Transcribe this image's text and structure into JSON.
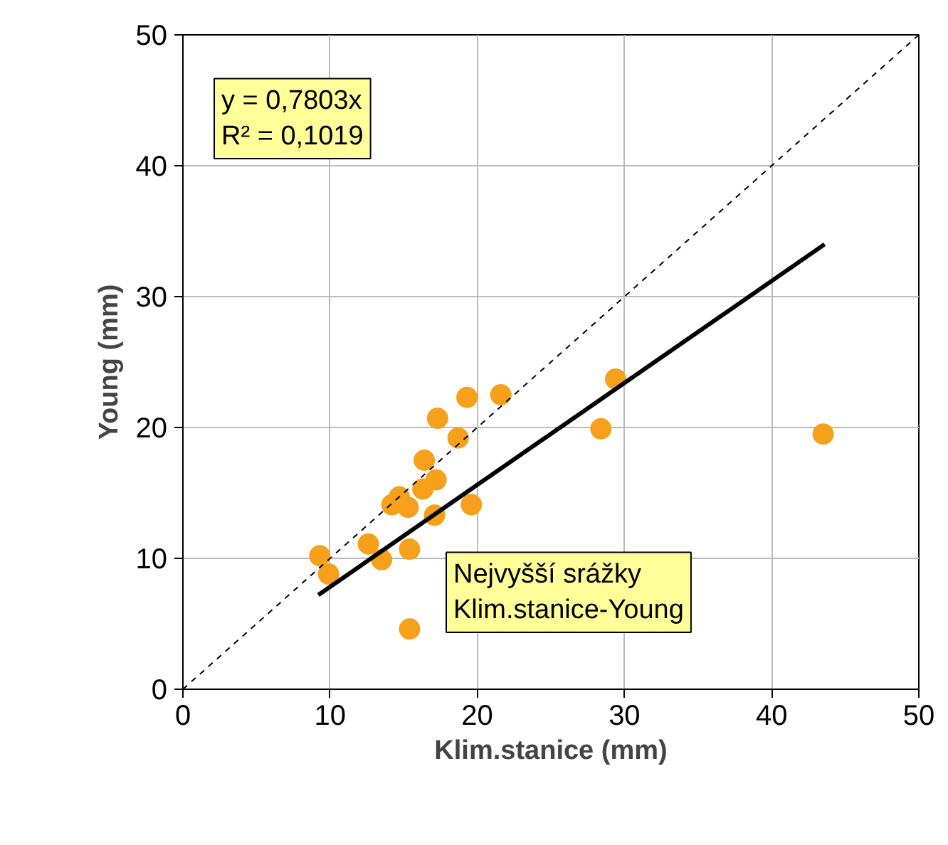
{
  "chart_data": {
    "type": "scatter",
    "xlabel": "Klim.stanice (mm)",
    "ylabel": "Young (mm)",
    "xlim": [
      0,
      50
    ],
    "ylim": [
      0,
      50
    ],
    "xticks": [
      0,
      10,
      20,
      30,
      40,
      50
    ],
    "yticks": [
      0,
      10,
      20,
      30,
      40,
      50
    ],
    "grid": true,
    "marker": "circle",
    "series": [
      {
        "color": "#f7a01c",
        "x": [
          19.3,
          21.6,
          17.3,
          18.7,
          16.4,
          17.2,
          16.3,
          14.7,
          14.2,
          15.3,
          17.1,
          19.6,
          12.6,
          13.5,
          15.4,
          9.3,
          9.9,
          15.4,
          29.4,
          28.4,
          43.5
        ],
        "values": [
          22.3,
          22.5,
          20.7,
          19.2,
          17.5,
          16.0,
          15.3,
          14.7,
          14.1,
          13.9,
          13.3,
          14.1,
          11.1,
          9.9,
          10.7,
          10.2,
          8.8,
          4.6,
          23.7,
          19.9,
          19.5
        ]
      },
      {
        "type": "line",
        "marker": "none",
        "color": "#000000",
        "line_style": "solid",
        "x": [
          9.2,
          43.6
        ],
        "values": [
          7.2,
          34.0
        ]
      },
      {
        "type": "line",
        "marker": "none",
        "color": "#000000",
        "line_style": "dashed",
        "x": [
          0,
          50
        ],
        "values": [
          0,
          50
        ]
      }
    ],
    "annotations": [
      "y = 0,7803x\nR² = 0,1019",
      "Nejvyšší srážky\nKlim.stanice-Young"
    ]
  }
}
